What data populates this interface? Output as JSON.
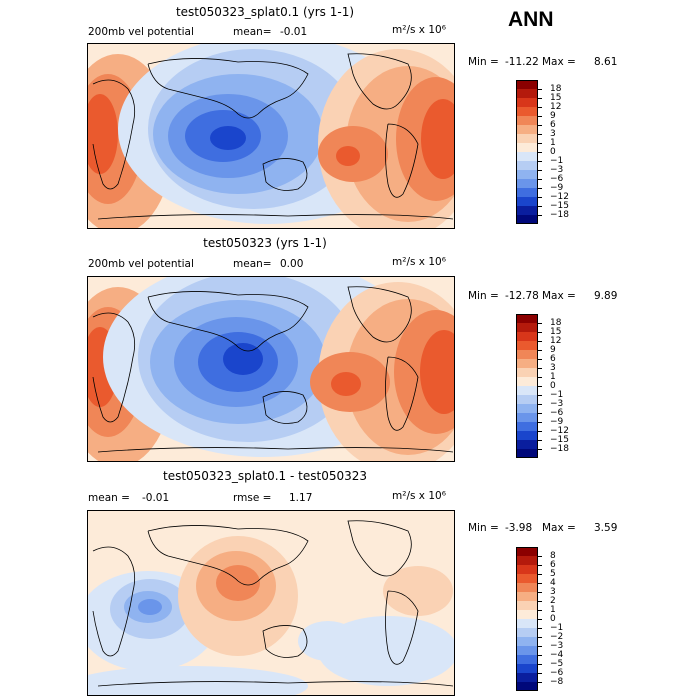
{
  "season": "ANN",
  "panels": [
    {
      "title": "test050323_splat0.1 (yrs 1-1)",
      "left_label": "200mb vel potential",
      "stat_label": "mean=",
      "stat_value": "-0.01",
      "units": "m²/s x 10⁶",
      "min_label": "Min =",
      "min_value": "-11.22",
      "max_label": "Max =",
      "max_value": "8.61",
      "levels": [
        "18",
        "15",
        "12",
        "9",
        "6",
        "3",
        "1",
        "0",
        "−1",
        "−3",
        "−6",
        "−9",
        "−12",
        "−15",
        "−18"
      ]
    },
    {
      "title": "test050323 (yrs 1-1)",
      "left_label": "200mb vel potential",
      "stat_label": "mean=",
      "stat_value": "0.00",
      "units": "m²/s x 10⁶",
      "min_label": "Min =",
      "min_value": "-12.78",
      "max_label": "Max =",
      "max_value": "9.89",
      "levels": [
        "18",
        "15",
        "12",
        "9",
        "6",
        "3",
        "1",
        "0",
        "−1",
        "−3",
        "−6",
        "−9",
        "−12",
        "−15",
        "−18"
      ]
    },
    {
      "title": "test050323_splat0.1 - test050323",
      "left_label": "mean =",
      "left_value": "-0.01",
      "stat_label": "rmse =",
      "stat_value": "1.17",
      "units": "m²/s x 10⁶",
      "min_label": "Min =",
      "min_value": "-3.98",
      "max_label": "Max =",
      "max_value": "3.59",
      "levels": [
        "8",
        "6",
        "5",
        "4",
        "3",
        "2",
        "1",
        "0",
        "−1",
        "−2",
        "−3",
        "−4",
        "−5",
        "−6",
        "−8"
      ]
    }
  ],
  "colors": {
    "scale": [
      "#8b0000",
      "#b41a0c",
      "#d8361a",
      "#ea5a2e",
      "#f08657",
      "#f6ae83",
      "#fad2b4",
      "#fdebd9",
      "#d9e6f8",
      "#b6cdf3",
      "#8fb3f0",
      "#6a95ea",
      "#3f6ee0",
      "#1a45cc",
      "#0a1e9e",
      "#00087a"
    ]
  }
}
